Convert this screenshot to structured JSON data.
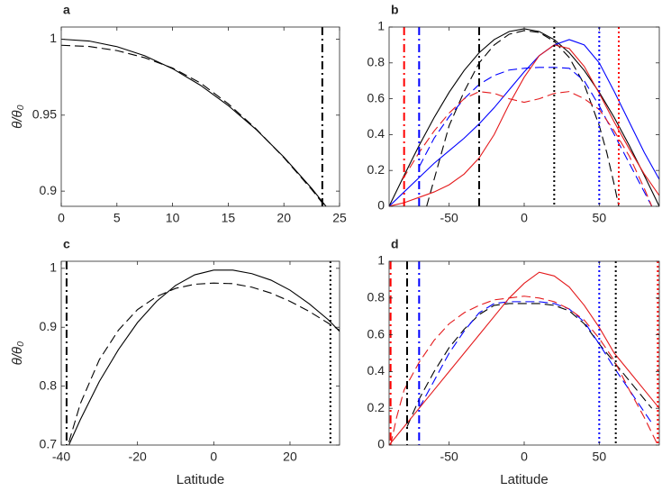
{
  "chart_data": [
    {
      "type": "line",
      "title": "a",
      "ylabel": "θ/θ₀",
      "xlim": [
        0,
        25
      ],
      "ylim": [
        0.89,
        1.008
      ],
      "xticks": [
        0,
        5,
        10,
        15,
        20,
        25
      ],
      "yticks": [
        0.9,
        0.95,
        1
      ],
      "series": [
        {
          "color": "#000000",
          "dash": "solid",
          "x": [
            0,
            2.5,
            5,
            7.5,
            10,
            12.5,
            15,
            17.5,
            20,
            22.5,
            25
          ],
          "values": [
            1,
            0.9988,
            0.9951,
            0.9891,
            0.9806,
            0.9697,
            0.9563,
            0.9406,
            0.9224,
            0.9018,
            0.8788
          ]
        },
        {
          "color": "#000000",
          "dash": "dashed",
          "x": [
            0,
            2.5,
            5,
            7.5,
            10,
            12.5,
            15,
            17.5,
            20,
            22.5,
            25
          ],
          "values": [
            0.996,
            0.9952,
            0.9925,
            0.9878,
            0.981,
            0.9712,
            0.9575,
            0.941,
            0.922,
            0.901,
            0.878
          ]
        }
      ],
      "vlines": [
        {
          "x": 23.45,
          "color": "#000000",
          "style": "dashdot"
        }
      ]
    },
    {
      "type": "line",
      "title": "b",
      "xlim": [
        -90,
        90
      ],
      "ylim": [
        0,
        1
      ],
      "xticks": [
        -50,
        0,
        50
      ],
      "yticks": [
        0,
        0.2,
        0.4,
        0.6,
        0.8,
        1
      ],
      "series": [
        {
          "color": "#000000",
          "dash": "solid",
          "x": [
            -90,
            -80,
            -70,
            -60,
            -50,
            -40,
            -30,
            -20,
            -10,
            0,
            10,
            20,
            30,
            40,
            50,
            60,
            70,
            80,
            90
          ],
          "values": [
            0,
            0.172,
            0.339,
            0.495,
            0.636,
            0.758,
            0.857,
            0.93,
            0.975,
            0.99,
            0.975,
            0.93,
            0.857,
            0.758,
            0.636,
            0.495,
            0.339,
            0.172,
            0
          ]
        },
        {
          "color": "#000000",
          "dash": "dashed",
          "x": [
            -65,
            -60,
            -50,
            -40,
            -30,
            -20,
            -10,
            0,
            10,
            20,
            30,
            40,
            50,
            55,
            60,
            63
          ],
          "values": [
            0,
            0.15,
            0.45,
            0.64,
            0.8,
            0.9,
            0.96,
            0.98,
            0.97,
            0.92,
            0.83,
            0.68,
            0.45,
            0.3,
            0.12,
            0
          ]
        },
        {
          "color": "#0000ff",
          "dash": "solid",
          "x": [
            -90,
            -80,
            -70,
            -60,
            -50,
            -40,
            -30,
            -20,
            -10,
            0,
            10,
            20,
            30,
            40,
            50,
            60,
            70,
            80,
            90
          ],
          "values": [
            0,
            0.08,
            0.16,
            0.24,
            0.31,
            0.38,
            0.46,
            0.55,
            0.65,
            0.75,
            0.84,
            0.9,
            0.93,
            0.9,
            0.8,
            0.64,
            0.47,
            0.3,
            0.15
          ]
        },
        {
          "color": "#0000ff",
          "dash": "dashed",
          "x": [
            -70,
            -60,
            -50,
            -40,
            -30,
            -20,
            -10,
            0,
            10,
            20,
            30,
            40,
            50,
            60,
            70,
            80,
            85
          ],
          "values": [
            0.22,
            0.38,
            0.5,
            0.6,
            0.68,
            0.73,
            0.76,
            0.77,
            0.775,
            0.775,
            0.77,
            0.7,
            0.56,
            0.4,
            0.24,
            0.08,
            0
          ]
        },
        {
          "color": "#e41a1c",
          "dash": "solid",
          "x": [
            -90,
            -80,
            -70,
            -60,
            -50,
            -40,
            -30,
            -20,
            -10,
            0,
            10,
            20,
            30,
            40,
            50,
            60,
            70,
            80,
            90
          ],
          "values": [
            0,
            0.02,
            0.05,
            0.08,
            0.12,
            0.18,
            0.27,
            0.4,
            0.57,
            0.72,
            0.84,
            0.9,
            0.88,
            0.78,
            0.63,
            0.47,
            0.32,
            0.18,
            0.06
          ]
        },
        {
          "color": "#e41a1c",
          "dash": "dashed",
          "x": [
            -81,
            -70,
            -60,
            -50,
            -40,
            -30,
            -20,
            -10,
            0,
            10,
            20,
            30,
            40,
            50,
            60,
            70,
            80,
            85
          ],
          "values": [
            0.15,
            0.3,
            0.42,
            0.52,
            0.6,
            0.64,
            0.63,
            0.6,
            0.58,
            0.6,
            0.63,
            0.64,
            0.6,
            0.54,
            0.42,
            0.28,
            0.1,
            0
          ]
        }
      ],
      "vlines": [
        {
          "x": -80,
          "color": "#ff0000",
          "style": "dashdot"
        },
        {
          "x": -70,
          "color": "#0000ff",
          "style": "dashdot"
        },
        {
          "x": -30,
          "color": "#000000",
          "style": "dashdot"
        },
        {
          "x": 20,
          "color": "#000000",
          "style": "dotted"
        },
        {
          "x": 50,
          "color": "#0000ff",
          "style": "dotted"
        },
        {
          "x": 63,
          "color": "#ff0000",
          "style": "dotted"
        }
      ]
    },
    {
      "type": "line",
      "title": "c",
      "xlabel": "Latitude",
      "ylabel": "θ/θ₀",
      "xlim": [
        -40,
        33
      ],
      "ylim": [
        0.7,
        1.012
      ],
      "xticks": [
        -40,
        -20,
        0,
        20
      ],
      "yticks": [
        0.7,
        0.8,
        0.9,
        1
      ],
      "series": [
        {
          "color": "#000000",
          "dash": "solid",
          "x": [
            -38,
            -35,
            -30,
            -25,
            -20,
            -15,
            -10,
            -5,
            0,
            5,
            10,
            15,
            20,
            25,
            30,
            33
          ],
          "values": [
            0.7,
            0.743,
            0.808,
            0.862,
            0.908,
            0.944,
            0.971,
            0.989,
            0.997,
            0.997,
            0.991,
            0.98,
            0.963,
            0.94,
            0.913,
            0.893
          ]
        },
        {
          "color": "#000000",
          "dash": "dashed",
          "x": [
            -38,
            -35,
            -30,
            -25,
            -20,
            -15,
            -10,
            -5,
            0,
            5,
            10,
            15,
            20,
            25,
            30,
            33
          ],
          "values": [
            0.705,
            0.77,
            0.845,
            0.895,
            0.93,
            0.952,
            0.966,
            0.973,
            0.975,
            0.974,
            0.968,
            0.958,
            0.944,
            0.927,
            0.907,
            0.895
          ]
        }
      ],
      "vlines": [
        {
          "x": -38.6,
          "color": "#000000",
          "style": "dashdot"
        },
        {
          "x": 30.6,
          "color": "#000000",
          "style": "dotted"
        }
      ]
    },
    {
      "type": "line",
      "title": "d",
      "xlabel": "Latitude",
      "xlim": [
        -90,
        90
      ],
      "ylim": [
        0,
        1
      ],
      "xticks": [
        -50,
        0,
        50
      ],
      "yticks": [
        0,
        0.2,
        0.4,
        0.6,
        0.8,
        1
      ],
      "series": [
        {
          "color": "#000000",
          "dash": "dashed",
          "x": [
            -78,
            -70,
            -60,
            -50,
            -40,
            -30,
            -20,
            -10,
            0,
            10,
            20,
            30,
            40,
            50,
            60,
            70,
            80,
            85
          ],
          "values": [
            0.1,
            0.25,
            0.4,
            0.53,
            0.63,
            0.71,
            0.76,
            0.77,
            0.77,
            0.77,
            0.76,
            0.73,
            0.66,
            0.55,
            0.45,
            0.35,
            0.25,
            0.2
          ]
        },
        {
          "color": "#0000ff",
          "dash": "dashed",
          "x": [
            -70,
            -60,
            -50,
            -40,
            -30,
            -20,
            -10,
            0,
            10,
            20,
            30,
            40,
            50,
            60,
            70,
            80,
            85
          ],
          "values": [
            0.2,
            0.35,
            0.5,
            0.62,
            0.72,
            0.77,
            0.78,
            0.78,
            0.78,
            0.77,
            0.74,
            0.67,
            0.55,
            0.42,
            0.3,
            0.18,
            0.12
          ]
        },
        {
          "color": "#e41a1c",
          "dash": "solid",
          "x": [
            -90,
            -80,
            -70,
            -60,
            -50,
            -40,
            -30,
            -20,
            -10,
            0,
            10,
            20,
            30,
            40,
            50,
            60,
            70,
            80,
            90
          ],
          "values": [
            0,
            0.1,
            0.2,
            0.3,
            0.4,
            0.5,
            0.6,
            0.7,
            0.8,
            0.88,
            0.94,
            0.92,
            0.86,
            0.76,
            0.64,
            0.5,
            0.4,
            0.3,
            0.2
          ]
        },
        {
          "color": "#e41a1c",
          "dash": "dashed",
          "x": [
            -89,
            -85,
            -80,
            -70,
            -60,
            -50,
            -40,
            -30,
            -20,
            -10,
            0,
            10,
            20,
            30,
            40,
            50,
            60,
            70,
            80,
            89
          ],
          "values": [
            0,
            0.15,
            0.3,
            0.45,
            0.57,
            0.66,
            0.72,
            0.76,
            0.79,
            0.8,
            0.81,
            0.8,
            0.78,
            0.74,
            0.68,
            0.58,
            0.46,
            0.3,
            0.15,
            0
          ]
        }
      ],
      "vlines": [
        {
          "x": -89,
          "color": "#ff0000",
          "style": "dashdot"
        },
        {
          "x": -78,
          "color": "#000000",
          "style": "dashdot"
        },
        {
          "x": -70,
          "color": "#0000ff",
          "style": "dashdot"
        },
        {
          "x": 50,
          "color": "#0000ff",
          "style": "dotted"
        },
        {
          "x": 61,
          "color": "#000000",
          "style": "dotted"
        },
        {
          "x": 89,
          "color": "#ff0000",
          "style": "dotted"
        }
      ]
    }
  ]
}
